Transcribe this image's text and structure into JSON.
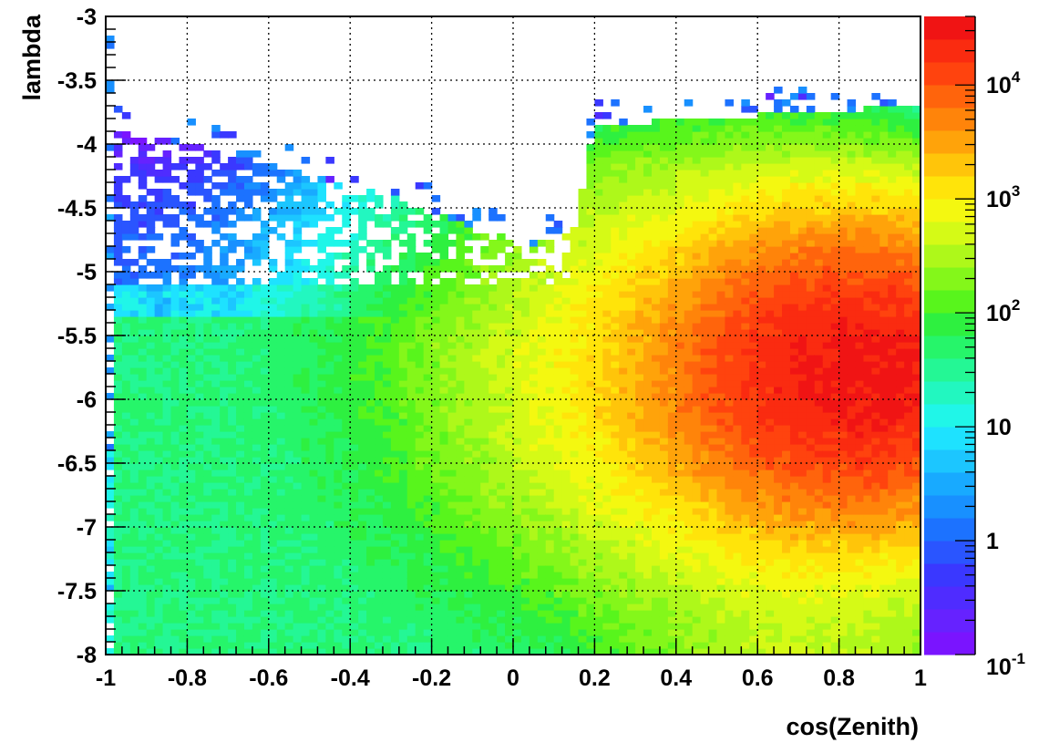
{
  "chart_data": {
    "type": "heatmap",
    "xlabel": "cos(Zenith)",
    "ylabel": "lambda",
    "xlim": [
      -1,
      1
    ],
    "ylim": [
      -8,
      -3
    ],
    "x_ticks": [
      "-1",
      "-0.8",
      "-0.6",
      "-0.4",
      "-0.2",
      "0",
      "0.2",
      "0.4",
      "0.6",
      "0.8",
      "1"
    ],
    "y_ticks": [
      "-3",
      "-3.5",
      "-4",
      "-4.5",
      "-5",
      "-5.5",
      "-6",
      "-6.5",
      "-7",
      "-7.5",
      "-8"
    ],
    "bins": {
      "x": 100,
      "y": 100
    },
    "grid": true,
    "z_scale": "log",
    "zlim": [
      0.1,
      40000
    ],
    "colorbar_labels": [
      {
        "value": 0.1,
        "base": "10",
        "exp": "-1"
      },
      {
        "value": 1,
        "base": "1",
        "exp": ""
      },
      {
        "value": 10,
        "base": "10",
        "exp": ""
      },
      {
        "value": 100,
        "base": "10",
        "exp": "2"
      },
      {
        "value": 1000,
        "base": "10",
        "exp": "3"
      },
      {
        "value": 10000,
        "base": "10",
        "exp": "4"
      }
    ],
    "palette": [
      "#7a14ff",
      "#6622ff",
      "#4f2cff",
      "#3a38ff",
      "#2a55ff",
      "#1c72ff",
      "#1890ff",
      "#18aaff",
      "#1cc6ff",
      "#1ee2ff",
      "#20f6e8",
      "#22f7c0",
      "#24f795",
      "#26f56a",
      "#2ef040",
      "#58f51c",
      "#84f71a",
      "#aef81a",
      "#d5fa16",
      "#f4f810",
      "#ffe40a",
      "#ffc50a",
      "#ffa30a",
      "#ff840a",
      "#ff640c",
      "#ff430e",
      "#fa2b10",
      "#f01414"
    ],
    "regions_description": {
      "upper_boundary_left": [
        [
          -0.97,
          -3.95
        ],
        [
          -0.8,
          -4.05
        ],
        [
          -0.5,
          -4.3
        ],
        [
          -0.3,
          -4.45
        ],
        [
          -0.1,
          -4.7
        ],
        [
          0.05,
          -4.85
        ],
        [
          0.15,
          -4.7
        ],
        [
          0.2,
          -3.9
        ],
        [
          1.0,
          -3.75
        ]
      ],
      "hotspot": {
        "x": 0.85,
        "y": -5.8,
        "max_count": 30000
      },
      "background_count": 40
    }
  }
}
